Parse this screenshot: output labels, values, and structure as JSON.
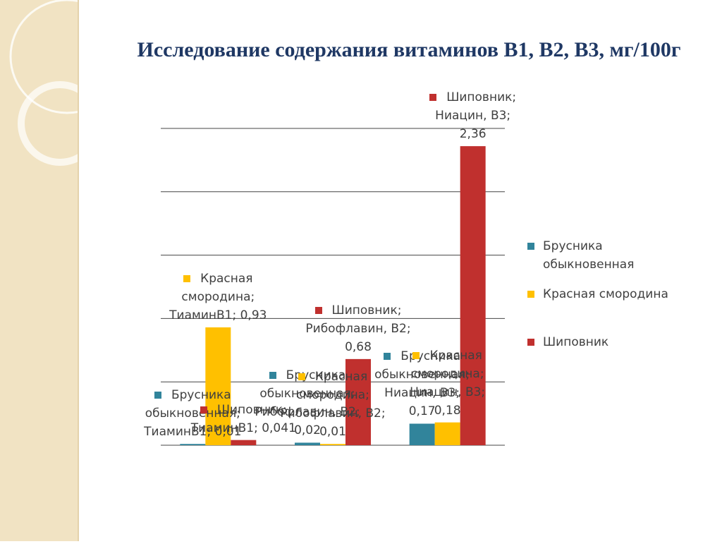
{
  "chart_data": {
    "type": "bar",
    "title": "Исследование содержания витаминов В1, В2, В3, мг/100г",
    "categories": [
      null,
      null,
      null
    ],
    "series": [
      {
        "name": "Брусника обыкновенная",
        "color": "#31849b",
        "values": [
          0.01,
          0.02,
          0.17
        ],
        "value_labels": [
          "Брусника обыкновенная; ТиаминB1; 0,01",
          "Брусника обыкновенная; Рибофлавин, B2; 0,02",
          "Брусника обыкновенная; Ниацин, B3; 0,17"
        ]
      },
      {
        "name": "Красная смородина",
        "color": "#ffc000",
        "values": [
          0.93,
          0.01,
          0.18
        ],
        "value_labels": [
          "Красная смородина; ТиаминB1; 0,93",
          "Красная смородина; Рибофлавин, B2; 0,01",
          "Красная смородина; Ниацин, B3; 0,18"
        ]
      },
      {
        "name": "Шиповник",
        "color": "#c0302e",
        "values": [
          0.041,
          0.68,
          2.36
        ],
        "value_labels": [
          "Шиповник; ТиаминB1; 0,041",
          "Шиповник; Рибофлавин, B2; 0,68",
          "Шиповник; Ниацин, B3; 2,36"
        ]
      }
    ],
    "ylim": [
      0,
      2.5
    ],
    "yticks": [
      0,
      0.5,
      1,
      1.5,
      2,
      2.5
    ],
    "grid": true,
    "legend": "right"
  }
}
